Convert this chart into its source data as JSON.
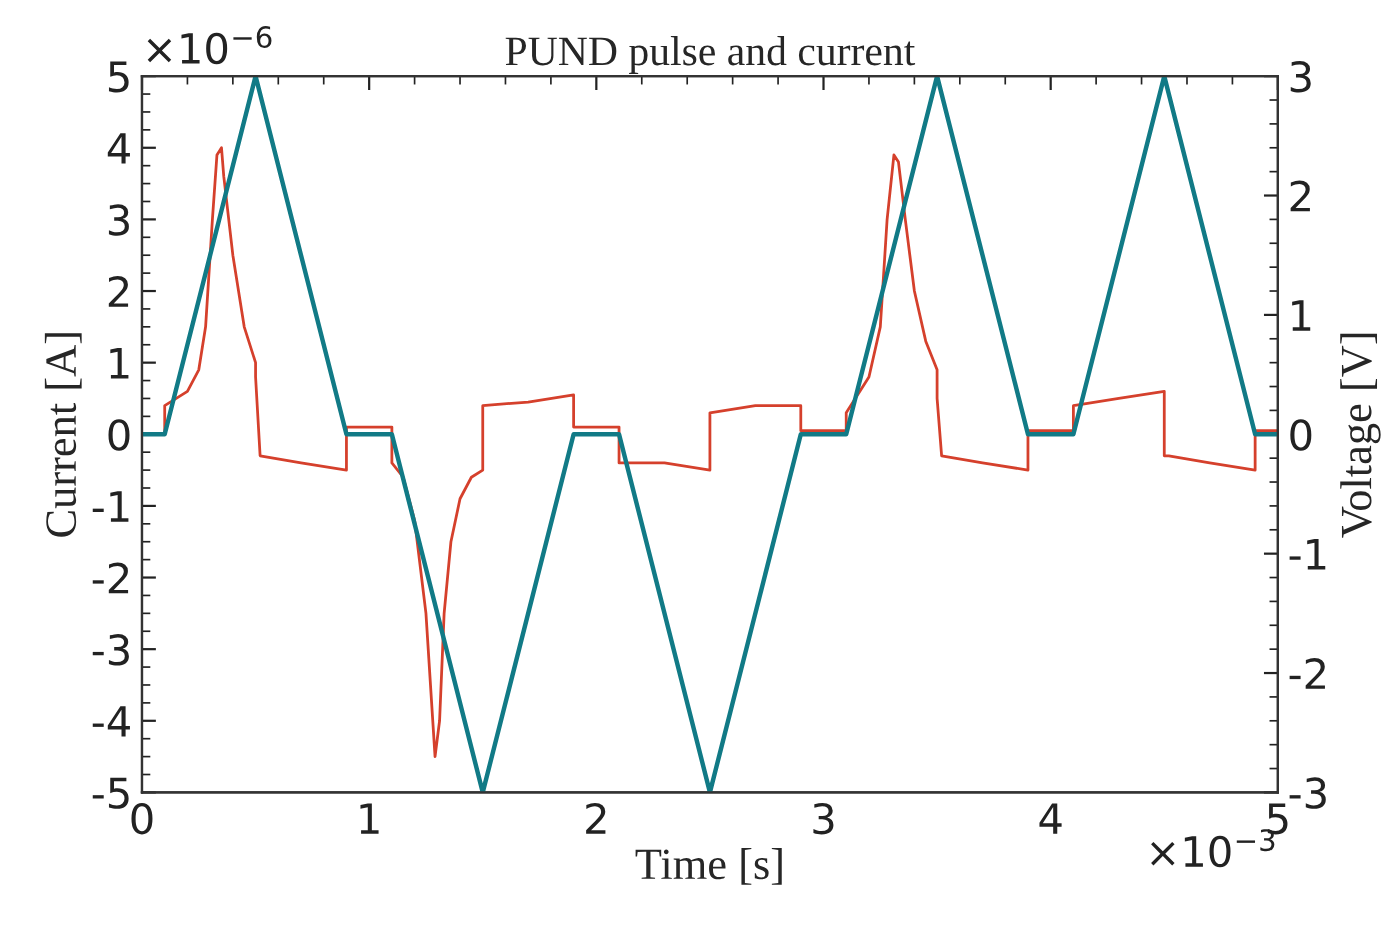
{
  "chart_data": {
    "type": "line",
    "title": "PUND pulse and current",
    "xlabel": "Time [s]",
    "ylabel": "Current [A]",
    "y2label": "Voltage [V]",
    "annotations": [
      "×10$^{−6}$",
      "×10$^{−3}$"
    ],
    "xlim": [
      0,
      5
    ],
    "xticks": [
      0,
      1,
      2,
      3,
      4,
      5
    ],
    "ylim": [
      -5,
      5
    ],
    "yticks": [
      -5,
      -4,
      -3,
      -2,
      -1,
      0,
      1,
      2,
      3,
      4,
      5
    ],
    "y2lim": [
      -3,
      3
    ],
    "y2ticks": [
      -3,
      -2,
      -1,
      0,
      1,
      2,
      3
    ],
    "grid": false,
    "legend": false,
    "line_style": "solid",
    "marker": "none",
    "series": [
      {
        "color": "#d5402c",
        "x": [
          0,
          0.1,
          0.1,
          0.2,
          0.25,
          0.28,
          0.31,
          0.33,
          0.35,
          0.36,
          0.4,
          0.45,
          0.5,
          0.5,
          0.52,
          0.7,
          0.9,
          0.9,
          1.1,
          1.1,
          1.15,
          1.2,
          1.25,
          1.28,
          1.29,
          1.31,
          1.33,
          1.36,
          1.4,
          1.45,
          1.5,
          1.5,
          1.7,
          1.9,
          1.9,
          2.1,
          2.1,
          2.3,
          2.5,
          2.5,
          2.7,
          2.9,
          2.9,
          3.1,
          3.1,
          3.2,
          3.25,
          3.28,
          3.31,
          3.33,
          3.36,
          3.4,
          3.45,
          3.5,
          3.5,
          3.52,
          3.7,
          3.9,
          3.9,
          4.1,
          4.1,
          4.3,
          4.5,
          4.5,
          4.52,
          4.7,
          4.9,
          4.9,
          5
        ],
        "values": [
          0,
          0,
          0.4,
          0.6,
          0.9,
          1.5,
          3,
          3.9,
          4.0,
          3.6,
          2.5,
          1.5,
          1.0,
          0.8,
          -0.3,
          -0.4,
          -0.5,
          0.1,
          0.1,
          -0.4,
          -0.6,
          -1.2,
          -2.5,
          -4,
          -4.5,
          -4,
          -2.5,
          -1.5,
          -0.9,
          -0.6,
          -0.5,
          0.4,
          0.45,
          0.55,
          0.1,
          0.1,
          -0.4,
          -0.4,
          -0.5,
          0.3,
          0.4,
          0.4,
          0.05,
          0.05,
          0.3,
          0.8,
          1.5,
          3,
          3.9,
          3.8,
          3,
          2,
          1.3,
          0.9,
          0.5,
          -0.3,
          -0.4,
          -0.5,
          0.05,
          0.05,
          0.4,
          0.5,
          0.6,
          -0.3,
          -0.3,
          -0.4,
          -0.5,
          0.05,
          0.05
        ]
      },
      {
        "color": "#117a86",
        "axis": "y2",
        "x": [
          0,
          0.1,
          0.5,
          0.9,
          1.1,
          1.5,
          1.9,
          2.1,
          2.5,
          2.9,
          3.1,
          3.5,
          3.9,
          4.1,
          4.5,
          4.9,
          5
        ],
        "values": [
          0,
          0,
          3,
          0,
          0,
          -3,
          0,
          0,
          -3,
          0,
          0,
          3,
          0,
          0,
          3,
          0,
          0
        ]
      }
    ]
  }
}
